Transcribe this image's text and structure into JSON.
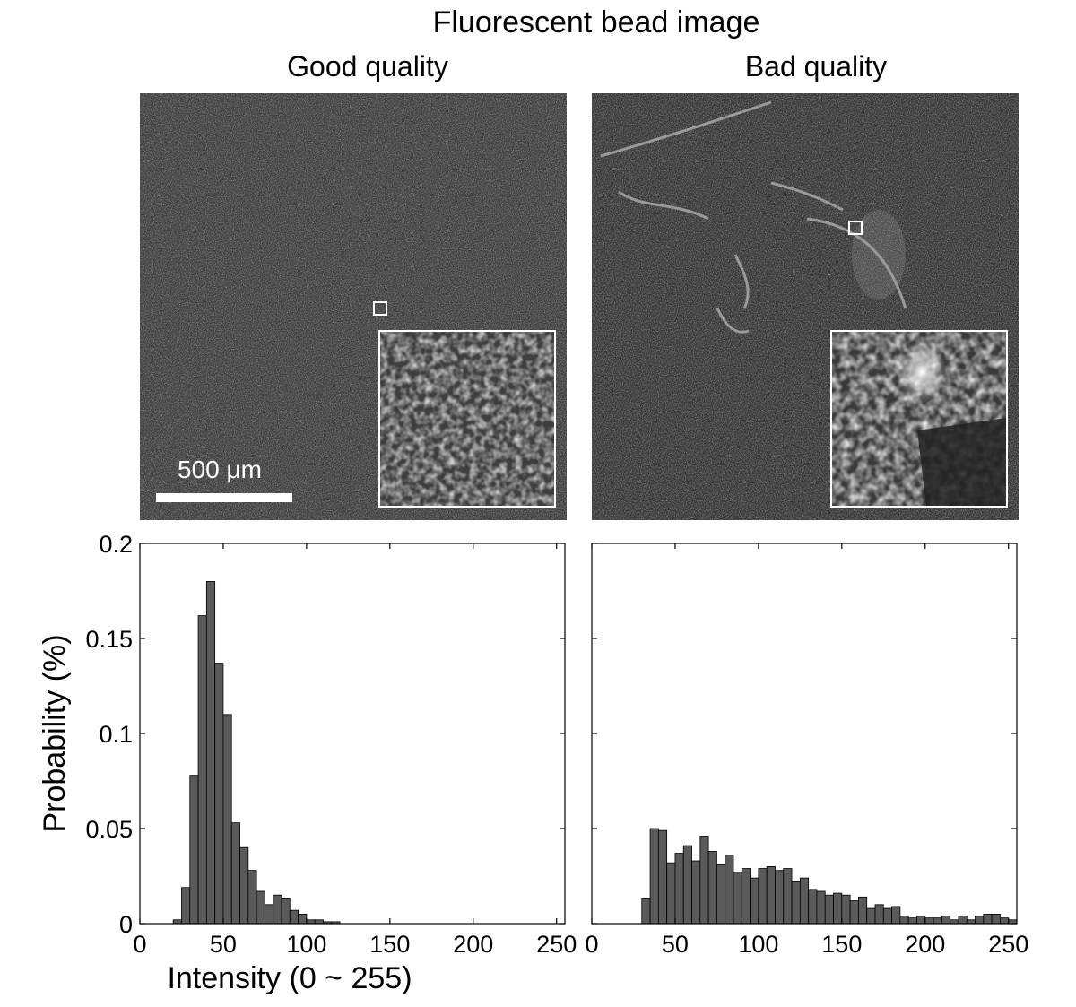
{
  "figure": {
    "title": "Fluorescent bead image",
    "panels": [
      {
        "title": "Good quality",
        "scalebar_label": "500 μm"
      },
      {
        "title": "Bad quality"
      }
    ]
  },
  "chart_data": [
    {
      "type": "bar",
      "title": "Good quality",
      "xlabel": "Intensity (0 ~ 255)",
      "ylabel": "Probability (%)",
      "xlim": [
        0,
        255
      ],
      "ylim": [
        0,
        0.2
      ],
      "xticks": [
        "0",
        "50",
        "100",
        "150",
        "200",
        "250"
      ],
      "yticks": [
        "0",
        "0.05",
        "0.1",
        "0.15",
        "0.2"
      ],
      "bin_width": 5,
      "bin_centers": [
        22.5,
        27.5,
        32.5,
        37.5,
        42.5,
        47.5,
        52.5,
        57.5,
        62.5,
        67.5,
        72.5,
        77.5,
        82.5,
        87.5,
        92.5,
        97.5,
        102.5,
        107.5,
        112.5,
        117.5,
        122.5,
        127.5,
        132.5,
        137.5,
        142.5,
        147.5,
        152.5,
        157.5
      ],
      "values": [
        0.002,
        0.019,
        0.078,
        0.162,
        0.18,
        0.137,
        0.11,
        0.053,
        0.04,
        0.028,
        0.017,
        0.01,
        0.015,
        0.013,
        0.007,
        0.005,
        0.002,
        0.002,
        0.001,
        0.001,
        0.0,
        0.0,
        0.0,
        0.0,
        0.0,
        0.0,
        0.0,
        0.0
      ]
    },
    {
      "type": "bar",
      "title": "Bad quality",
      "xlabel": "",
      "ylabel": "",
      "xlim": [
        0,
        255
      ],
      "ylim": [
        0,
        0.2
      ],
      "xticks": [
        "0",
        "50",
        "100",
        "150",
        "200",
        "250"
      ],
      "yticks": [],
      "bin_width": 5,
      "bin_centers": [
        32.5,
        37.5,
        42.5,
        47.5,
        52.5,
        57.5,
        62.5,
        67.5,
        72.5,
        77.5,
        82.5,
        87.5,
        92.5,
        97.5,
        102.5,
        107.5,
        112.5,
        117.5,
        122.5,
        127.5,
        132.5,
        137.5,
        142.5,
        147.5,
        152.5,
        157.5,
        162.5,
        167.5,
        172.5,
        177.5,
        182.5,
        187.5,
        192.5,
        197.5,
        202.5,
        207.5,
        212.5,
        217.5,
        222.5,
        227.5,
        232.5,
        237.5,
        242.5,
        247.5,
        252.5
      ],
      "values": [
        0.013,
        0.05,
        0.049,
        0.032,
        0.037,
        0.041,
        0.033,
        0.046,
        0.038,
        0.031,
        0.036,
        0.027,
        0.029,
        0.024,
        0.029,
        0.03,
        0.028,
        0.029,
        0.022,
        0.024,
        0.018,
        0.017,
        0.015,
        0.016,
        0.015,
        0.012,
        0.014,
        0.008,
        0.01,
        0.008,
        0.009,
        0.004,
        0.003,
        0.004,
        0.003,
        0.003,
        0.004,
        0.002,
        0.004,
        0.002,
        0.004,
        0.005,
        0.005,
        0.003,
        0.002
      ]
    }
  ]
}
